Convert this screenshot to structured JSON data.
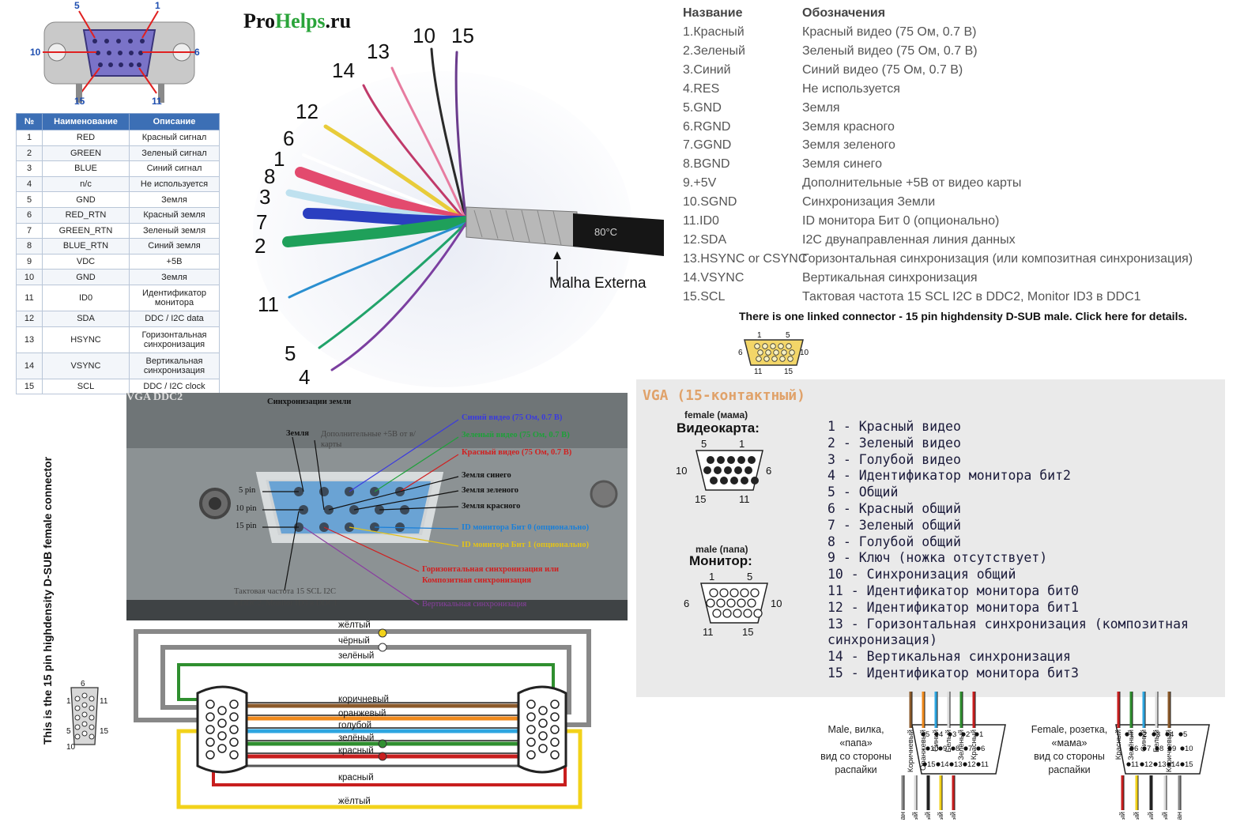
{
  "connector_top": {
    "pin5": "5",
    "pin1": "1",
    "pin10": "10",
    "pin6": "6",
    "pin15": "15",
    "pin11": "11"
  },
  "pin_table": {
    "headers": [
      "№",
      "Наименование",
      "Описание"
    ],
    "rows": [
      [
        "1",
        "RED",
        "Красный сигнал"
      ],
      [
        "2",
        "GREEN",
        "Зеленый сигнал"
      ],
      [
        "3",
        "BLUE",
        "Синий сигнал"
      ],
      [
        "4",
        "n/c",
        "Не используется"
      ],
      [
        "5",
        "GND",
        "Земля"
      ],
      [
        "6",
        "RED_RTN",
        "Красный земля"
      ],
      [
        "7",
        "GREEN_RTN",
        "Зеленый земля"
      ],
      [
        "8",
        "BLUE_RTN",
        "Синий земля"
      ],
      [
        "9",
        "VDC",
        "+5В"
      ],
      [
        "10",
        "GND",
        "Земля"
      ],
      [
        "11",
        "ID0",
        "Идентификатор монитора"
      ],
      [
        "12",
        "SDA",
        "DDC / I2C data"
      ],
      [
        "13",
        "HSYNC",
        "Горизонтальная синхронизация"
      ],
      [
        "14",
        "VSYNC",
        "Вертикальная синхронизация"
      ],
      [
        "15",
        "SCL",
        "DDC / I2C clock"
      ]
    ]
  },
  "cable": {
    "brand_a": "Pro",
    "brand_b": "Helps",
    "brand_c": ".ru",
    "labels": [
      "10",
      "15",
      "13",
      "14",
      "12",
      "6",
      "1",
      "8",
      "3",
      "7",
      "2",
      "11",
      "5",
      "4"
    ],
    "cable_print": "80°C",
    "shield_label": "Malha Externa"
  },
  "pin_list": {
    "header_name": "Название",
    "header_desc": "Обозначения",
    "rows": [
      [
        "1.Красный",
        "Красный видео (75 Ом, 0.7 В)"
      ],
      [
        "2.Зеленый",
        "Зеленый видео (75 Ом, 0.7 В)"
      ],
      [
        "3.Синий",
        "Синий видео (75 Ом, 0.7 В)"
      ],
      [
        "4.RES",
        "Не используется"
      ],
      [
        "5.GND",
        "Земля"
      ],
      [
        "6.RGND",
        "Земля красного"
      ],
      [
        "7.GGND",
        "Земля зеленого"
      ],
      [
        "8.BGND",
        "Земля синего"
      ],
      [
        "9.+5V",
        "Дополнительные +5В от видео карты"
      ],
      [
        "10.SGND",
        "Синхронизация Земли"
      ],
      [
        "11.ID0",
        "ID монитора Бит 0 (опционально)"
      ],
      [
        "12.SDA",
        "I2C двунаправленная линия данных"
      ],
      [
        "13.HSYNC or CSYNC",
        "Горизонтальная синхронизация (или композитная синхронизация)"
      ],
      [
        "14.VSYNC",
        "Вертикальная синхронизация"
      ],
      [
        "15.SCL",
        "Тактовая частота 15 SCL I2C в DDC2, Monitor ID3 в DDC1"
      ]
    ],
    "linked_note": "There is one linked connector - 15 pin highdensity D-SUB male. Click here for details.",
    "small_conn": {
      "p1": "1",
      "p5": "5",
      "p6": "6",
      "p10": "10",
      "p11": "11",
      "p15": "15"
    }
  },
  "vga": {
    "title": "VGA (15-контактный)",
    "female_small": "female (мама)",
    "female_big": "Видеокарта:",
    "male_small": "male (папа)",
    "male_big": "Монитор:",
    "female_nums": {
      "a": "5",
      "b": "1",
      "c": "10",
      "d": "6",
      "e": "15",
      "f": "11"
    },
    "male_nums": {
      "a": "1",
      "b": "5",
      "c": "6",
      "d": "10",
      "e": "11",
      "f": "15"
    },
    "items": [
      "1 - Красный видео",
      "2 - Зеленый видео",
      "3 - Голубой видео",
      "4 - Идентификатор монитора бит2",
      "5 - Общий",
      "6 - Красный общий",
      "7 - Зеленый общий",
      "8 - Голубой общий",
      "9 - Ключ (ножка отсутствует)",
      "10 - Синхронизация общий",
      "11 - Идентификатор монитора бит0",
      "12 - Идентификатор монитора бит1",
      "13 - Горизонтальная синхронизация (композитная синхронизация)",
      "14 - Вертикальная синхронизация",
      "15 - Идентификатор монитора бит3"
    ]
  },
  "photo": {
    "title": "VGA DDC2",
    "sync_ground": "Синхронизации земли",
    "ground": "Земля",
    "extra": "Дополнительные +5В от в/карты",
    "blue": "Синий видео (75 Ом, 0.7 В)",
    "green": "Зеленый видео (75 Ом, 0.7 В)",
    "red": "Красный видео (75 Ом, 0.7 В)",
    "gnd_blue": "Земля синего",
    "gnd_green": "Земля зеленого",
    "gnd_red": "Земля красного",
    "id0": "ID монитора Бит 0 (опционально)",
    "id1": "ID монитора Бит 1 (опционально)",
    "hsync_a": "Горизонтальная синхронизация или",
    "hsync_b": "Композитная синхронизация",
    "vsync": "Вертикальная синхронизация",
    "scl_a": "Тактовая частота 15 SCL I2C",
    "scl_b": "в DDC2, Monitor ID3 в DDC1",
    "pin5": "5 pin",
    "pin10": "10 pin",
    "pin15": "15 pin"
  },
  "wiring": {
    "top_labels": [
      "жёлтый",
      "чёрный",
      "зелёный"
    ],
    "mid_labels": [
      "коричневый",
      "оранжевый",
      "голубой",
      "зелёный",
      "красный"
    ],
    "bottom_labels": [
      "красный",
      "жёлтый"
    ],
    "colors": {
      "yellow": "#f2d21a",
      "black": "#555555",
      "green": "#2f8f2f",
      "brown": "#8b5a2b",
      "orange": "#f08a1c",
      "blue": "#2ea6e0",
      "red": "#c81e1e",
      "grey": "#888888"
    }
  },
  "side": {
    "rotated_label": "This is the 15 pin highdensity D-SUB female connector",
    "nums": {
      "a": "6",
      "b": "11",
      "c": "15",
      "d": "10",
      "e": "5",
      "f": "1"
    }
  },
  "pinouts": {
    "male_caption": [
      "Male, вилка,",
      "«папа»",
      "вид со стороны",
      "распайки"
    ],
    "female_caption": [
      "Female, розетка,",
      "«мама»",
      "вид со стороны",
      "распайки"
    ],
    "male_top": [
      "Коричневый",
      "Оранжевый",
      "Синий",
      "Белый",
      "Зелёный",
      "Красный"
    ],
    "male_bottom": [
      "Общий экран",
      "Белый",
      "Чёрный",
      "Жёлтый",
      "Красный"
    ],
    "female_top": [
      "Красный",
      "Зелёный",
      "Синий",
      "Белый",
      "Коричневый"
    ],
    "female_bottom": [
      "Красный",
      "Жёлтый",
      "Чёрный",
      "Белый",
      "Общий экран"
    ],
    "male_row1": [
      "5",
      "4",
      "3",
      "2",
      "1"
    ],
    "male_row2": [
      "10",
      "9",
      "8",
      "7",
      "6"
    ],
    "male_row3": [
      "15",
      "14",
      "13",
      "12",
      "11"
    ],
    "female_row1": [
      "1",
      "2",
      "3",
      "4",
      "5"
    ],
    "female_row2": [
      "6",
      "7",
      "8",
      "9",
      "10"
    ],
    "female_row3": [
      "11",
      "12",
      "13",
      "14",
      "15"
    ]
  }
}
